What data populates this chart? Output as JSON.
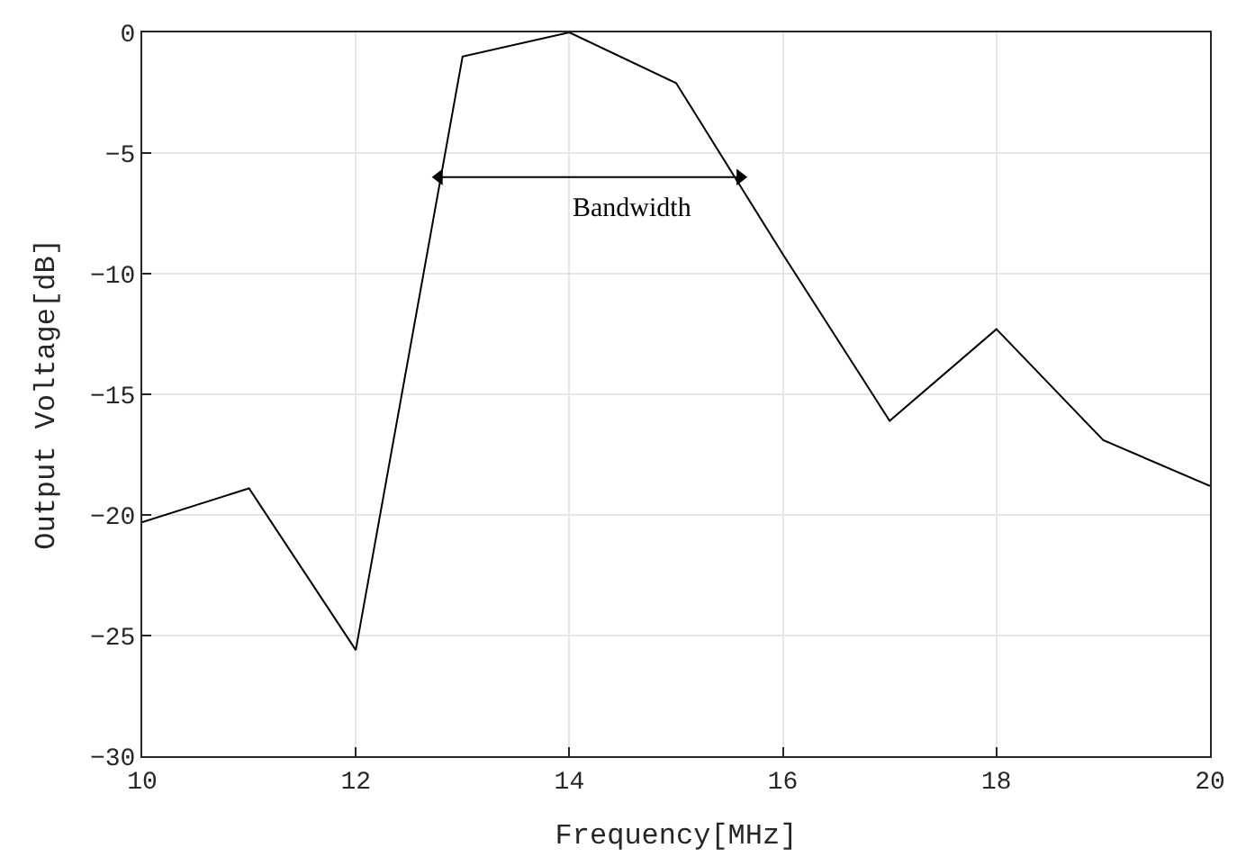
{
  "chart_data": {
    "type": "line",
    "x": [
      10,
      11,
      12,
      13,
      14,
      15,
      16,
      17,
      18,
      19,
      20
    ],
    "series": [
      {
        "color": "#000000",
        "values": [
          -20.3,
          -18.9,
          -25.6,
          -1.0,
          0,
          -2.1,
          -9.2,
          -16.1,
          -12.3,
          -16.9,
          -18.8
        ]
      },
      {
        "color": "#000000",
        "x": [
          12.78,
          15.6
        ],
        "values": [
          -6,
          -6
        ],
        "marker": "triangle"
      }
    ],
    "xlabel": "Frequency[MHz]",
    "ylabel": "Output Voltage[dB]",
    "xlim": [
      10,
      20
    ],
    "xticks": [
      10,
      12,
      14,
      16,
      18,
      20
    ],
    "ylim": [
      -30,
      0
    ],
    "yticks": [
      -30,
      -25,
      -20,
      -15,
      -10,
      -5,
      0
    ],
    "annotations": [
      "Bandwidth"
    ],
    "grid": true
  }
}
